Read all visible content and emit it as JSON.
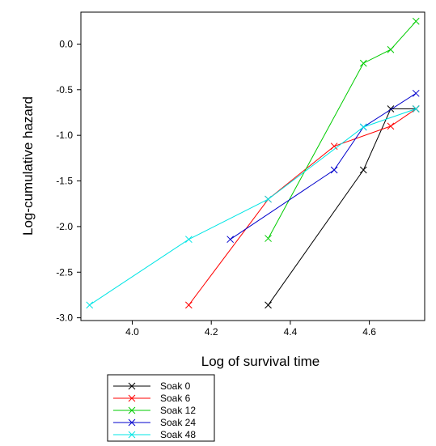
{
  "chart_data": {
    "type": "line",
    "title": "",
    "xlabel": "Log of survival time",
    "ylabel": "Log-cumulative hazard",
    "xlim": [
      3.87,
      4.74
    ],
    "ylim": [
      -3.03,
      0.35
    ],
    "x_ticks": [
      4.0,
      4.2,
      4.4,
      4.6
    ],
    "x_tick_labels": [
      "4.0",
      "4.2",
      "4.4",
      "4.6"
    ],
    "y_ticks": [
      0.0,
      -0.5,
      -1.0,
      -1.5,
      -2.0,
      -2.5,
      -3.0
    ],
    "y_tick_labels": [
      "0.0",
      "-0.5",
      "-1.0",
      "-1.5",
      "-2.0",
      "-2.5",
      "-3.0"
    ],
    "grid": false,
    "legend_position": "bottom-left",
    "marker": "x",
    "series": [
      {
        "name": "Soak 0",
        "color": "#000000",
        "x": [
          4.344,
          4.585,
          4.654,
          4.718
        ],
        "y": [
          -2.86,
          -1.38,
          -0.71,
          -0.71
        ]
      },
      {
        "name": "Soak 6",
        "color": "#ff0000",
        "x": [
          4.143,
          4.344,
          4.511,
          4.654,
          4.718
        ],
        "y": [
          -2.86,
          -1.7,
          -1.12,
          -0.9,
          -0.71
        ]
      },
      {
        "name": "Soak 12",
        "color": "#00cc00",
        "x": [
          4.344,
          4.585,
          4.654,
          4.718
        ],
        "y": [
          -2.13,
          -0.21,
          -0.06,
          0.25
        ]
      },
      {
        "name": "Soak 24",
        "color": "#0000cc",
        "x": [
          4.248,
          4.511,
          4.585,
          4.718
        ],
        "y": [
          -2.14,
          -1.38,
          -0.91,
          -0.54
        ]
      },
      {
        "name": "Soak 48",
        "color": "#00e5e5",
        "x": [
          3.892,
          4.143,
          4.344,
          4.585,
          4.718
        ],
        "y": [
          -2.86,
          -2.14,
          -1.7,
          -0.91,
          -0.71
        ]
      }
    ]
  }
}
